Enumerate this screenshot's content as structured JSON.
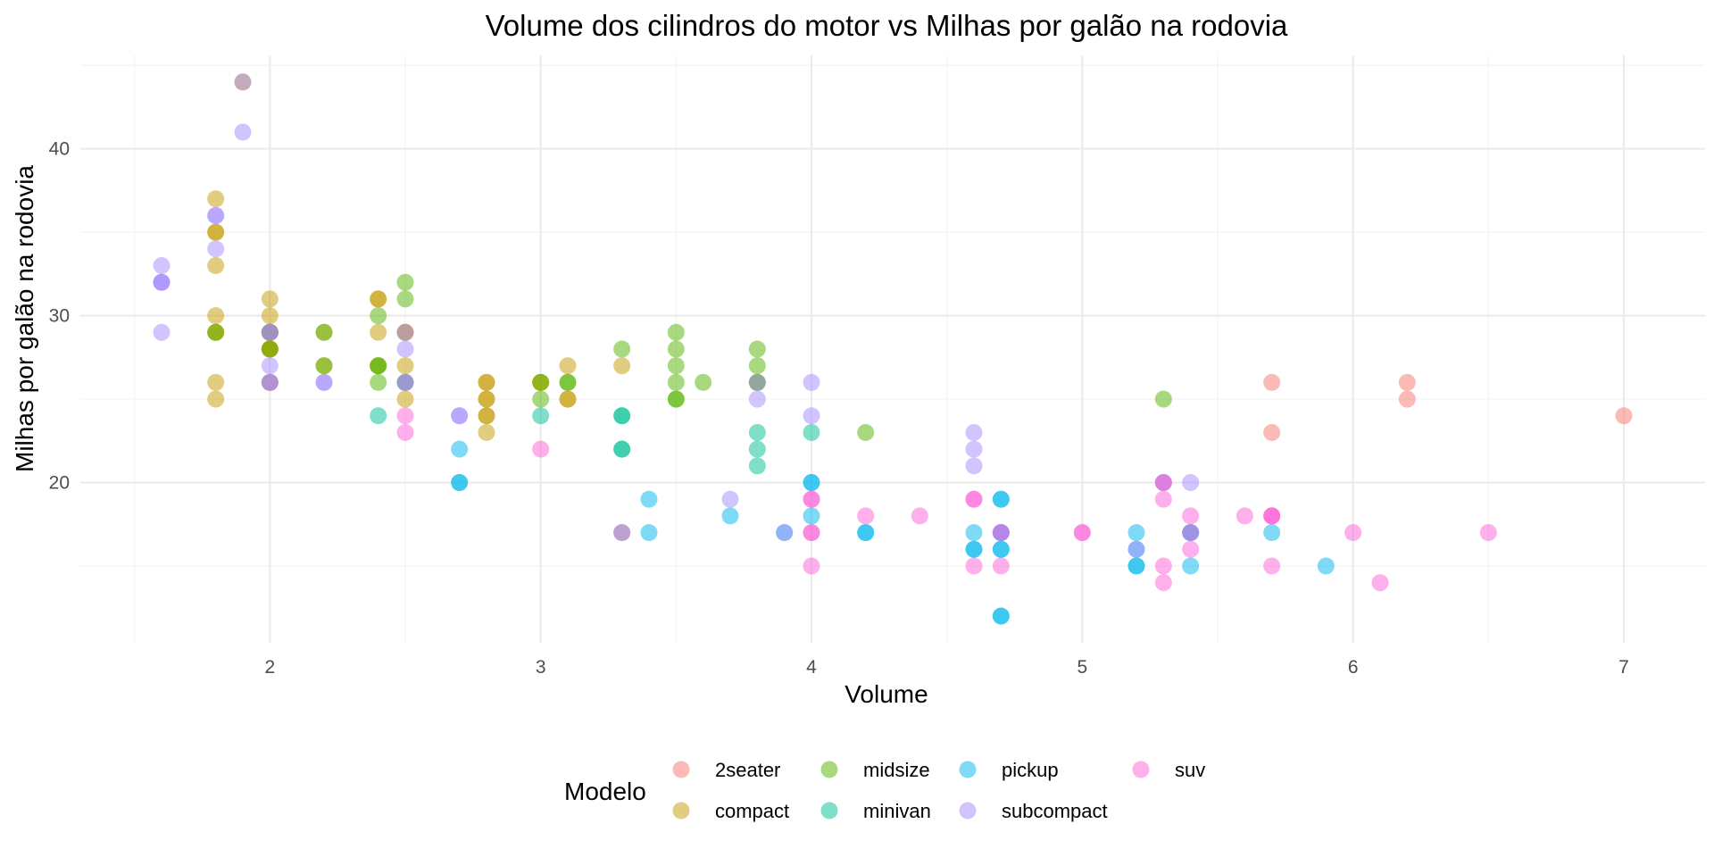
{
  "chart_data": {
    "type": "scatter",
    "title": "Volume dos cilindros do motor vs Milhas por galão na rodovia",
    "xlabel": "Volume",
    "ylabel": "Milhas por galão na rodovia",
    "xlim": [
      1.3,
      7.3
    ],
    "ylim": [
      10.4,
      45.6
    ],
    "x_major_ticks": [
      2,
      3,
      4,
      5,
      6,
      7
    ],
    "x_minor_ticks": [
      1.5,
      2.5,
      3.5,
      4.5,
      5.5,
      6.5
    ],
    "y_major_ticks": [
      20,
      30,
      40
    ],
    "y_minor_ticks": [
      15,
      25,
      35,
      45
    ],
    "x_tick_labels": [
      "2",
      "3",
      "4",
      "5",
      "6",
      "7"
    ],
    "y_tick_labels": [
      "20",
      "30",
      "40"
    ],
    "grid": true,
    "point_opacity": 0.5,
    "legend": {
      "title": "Modelo",
      "position": "bottom",
      "entries": [
        "2seater",
        "compact",
        "midsize",
        "minivan",
        "pickup",
        "subcompact",
        "suv"
      ]
    },
    "series": [
      {
        "name": "2seater",
        "color": "#F8766D",
        "points": [
          [
            5.7,
            26
          ],
          [
            5.7,
            23
          ],
          [
            6.2,
            26
          ],
          [
            6.2,
            25
          ],
          [
            7.0,
            24
          ]
        ]
      },
      {
        "name": "compact",
        "color": "#C49A00",
        "points": [
          [
            1.8,
            29
          ],
          [
            1.8,
            29
          ],
          [
            2.0,
            31
          ],
          [
            2.0,
            30
          ],
          [
            2.8,
            26
          ],
          [
            2.8,
            26
          ],
          [
            3.1,
            27
          ],
          [
            1.8,
            26
          ],
          [
            1.8,
            25
          ],
          [
            2.0,
            28
          ],
          [
            2.0,
            28
          ],
          [
            2.8,
            25
          ],
          [
            2.8,
            25
          ],
          [
            3.1,
            25
          ],
          [
            3.1,
            25
          ],
          [
            2.2,
            27
          ],
          [
            2.2,
            29
          ],
          [
            2.4,
            31
          ],
          [
            2.4,
            31
          ],
          [
            3.0,
            26
          ],
          [
            3.0,
            26
          ],
          [
            3.3,
            27
          ],
          [
            1.8,
            33
          ],
          [
            1.8,
            35
          ],
          [
            1.8,
            37
          ],
          [
            1.8,
            35
          ],
          [
            2.0,
            29
          ],
          [
            2.0,
            26
          ],
          [
            2.0,
            29
          ],
          [
            2.0,
            29
          ],
          [
            2.8,
            24
          ],
          [
            1.9,
            44
          ],
          [
            2.0,
            29
          ],
          [
            2.0,
            26
          ],
          [
            2.5,
            29
          ],
          [
            2.5,
            29
          ],
          [
            2.8,
            23
          ],
          [
            2.8,
            24
          ],
          [
            1.8,
            30
          ],
          [
            2.0,
            28
          ],
          [
            2.0,
            29
          ],
          [
            2.4,
            29
          ],
          [
            2.5,
            27
          ],
          [
            2.5,
            25
          ],
          [
            2.4,
            27
          ]
        ]
      },
      {
        "name": "midsize",
        "color": "#53B400",
        "points": [
          [
            2.4,
            27
          ],
          [
            2.4,
            30
          ],
          [
            3.1,
            26
          ],
          [
            3.5,
            29
          ],
          [
            3.6,
            26
          ],
          [
            2.4,
            27
          ],
          [
            3.0,
            25
          ],
          [
            3.3,
            28
          ],
          [
            3.5,
            28
          ],
          [
            3.5,
            27
          ],
          [
            3.8,
            28
          ],
          [
            3.8,
            26
          ],
          [
            3.8,
            26
          ],
          [
            5.3,
            25
          ],
          [
            2.5,
            32
          ],
          [
            2.5,
            31
          ],
          [
            3.5,
            26
          ],
          [
            3.5,
            25
          ],
          [
            1.8,
            29
          ],
          [
            2.0,
            28
          ],
          [
            2.0,
            29
          ],
          [
            2.5,
            26
          ],
          [
            2.5,
            26
          ],
          [
            3.5,
            25
          ],
          [
            4.2,
            23
          ],
          [
            3.8,
            27
          ],
          [
            3.1,
            26
          ],
          [
            2.4,
            26
          ],
          [
            2.2,
            29
          ],
          [
            2.2,
            27
          ],
          [
            3.0,
            26
          ]
        ]
      },
      {
        "name": "minivan",
        "color": "#00C094",
        "points": [
          [
            2.4,
            24
          ],
          [
            3.0,
            24
          ],
          [
            3.3,
            22
          ],
          [
            3.3,
            22
          ],
          [
            3.3,
            24
          ],
          [
            3.3,
            24
          ],
          [
            3.3,
            17
          ],
          [
            3.8,
            22
          ],
          [
            3.8,
            21
          ],
          [
            3.8,
            23
          ],
          [
            4.0,
            23
          ]
        ]
      },
      {
        "name": "pickup",
        "color": "#00B6EB",
        "points": [
          [
            2.7,
            20
          ],
          [
            2.7,
            20
          ],
          [
            2.7,
            22
          ],
          [
            3.4,
            17
          ],
          [
            3.4,
            19
          ],
          [
            4.0,
            18
          ],
          [
            4.0,
            20
          ],
          [
            4.7,
            17
          ],
          [
            4.7,
            16
          ],
          [
            4.7,
            16
          ],
          [
            5.2,
            16
          ],
          [
            5.2,
            17
          ],
          [
            3.7,
            18
          ],
          [
            3.9,
            17
          ],
          [
            4.7,
            19
          ],
          [
            4.7,
            17
          ],
          [
            5.2,
            15
          ],
          [
            5.2,
            15
          ],
          [
            5.7,
            17
          ],
          [
            5.9,
            15
          ],
          [
            4.6,
            17
          ],
          [
            4.6,
            16
          ],
          [
            5.4,
            15
          ],
          [
            4.2,
            17
          ],
          [
            4.2,
            17
          ],
          [
            4.6,
            16
          ],
          [
            4.7,
            12
          ],
          [
            4.7,
            12
          ],
          [
            5.4,
            17
          ],
          [
            5.3,
            20
          ],
          [
            5.4,
            17
          ],
          [
            4.0,
            20
          ],
          [
            4.7,
            19
          ]
        ]
      },
      {
        "name": "subcompact",
        "color": "#A58AFF",
        "points": [
          [
            1.6,
            33
          ],
          [
            1.6,
            32
          ],
          [
            1.6,
            32
          ],
          [
            1.6,
            29
          ],
          [
            1.6,
            32
          ],
          [
            1.8,
            34
          ],
          [
            1.8,
            36
          ],
          [
            1.8,
            36
          ],
          [
            2.0,
            29
          ],
          [
            2.0,
            26
          ],
          [
            2.0,
            27
          ],
          [
            1.9,
            44
          ],
          [
            1.9,
            41
          ],
          [
            2.0,
            29
          ],
          [
            2.0,
            26
          ],
          [
            2.5,
            28
          ],
          [
            2.5,
            29
          ],
          [
            2.5,
            26
          ],
          [
            2.5,
            26
          ],
          [
            2.2,
            26
          ],
          [
            2.2,
            26
          ],
          [
            2.7,
            24
          ],
          [
            2.7,
            24
          ],
          [
            3.8,
            26
          ],
          [
            3.8,
            25
          ],
          [
            4.0,
            26
          ],
          [
            4.0,
            24
          ],
          [
            4.6,
            21
          ],
          [
            4.6,
            22
          ],
          [
            4.6,
            23
          ],
          [
            5.4,
            20
          ],
          [
            3.7,
            19
          ],
          [
            3.9,
            17
          ],
          [
            4.7,
            17
          ],
          [
            5.2,
            16
          ]
        ]
      },
      {
        "name": "suv",
        "color": "#FB61D7",
        "points": [
          [
            5.7,
            15
          ],
          [
            5.7,
            18
          ],
          [
            6.0,
            17
          ],
          [
            5.7,
            18
          ],
          [
            5.3,
            20
          ],
          [
            5.3,
            15
          ],
          [
            5.3,
            14
          ],
          [
            5.7,
            18
          ],
          [
            6.5,
            17
          ],
          [
            6.1,
            14
          ],
          [
            5.4,
            16
          ],
          [
            5.4,
            18
          ],
          [
            5.4,
            17
          ],
          [
            4.0,
            15
          ],
          [
            4.0,
            17
          ],
          [
            4.0,
            19
          ],
          [
            4.0,
            17
          ],
          [
            4.0,
            19
          ],
          [
            4.6,
            15
          ],
          [
            4.6,
            19
          ],
          [
            4.6,
            19
          ],
          [
            4.7,
            15
          ],
          [
            5.0,
            17
          ],
          [
            5.0,
            17
          ],
          [
            5.3,
            19
          ],
          [
            5.6,
            18
          ],
          [
            4.2,
            18
          ],
          [
            4.4,
            18
          ],
          [
            2.5,
            24
          ],
          [
            2.5,
            23
          ],
          [
            3.0,
            22
          ],
          [
            4.7,
            17
          ],
          [
            3.3,
            17
          ],
          [
            5.3,
            20
          ]
        ]
      }
    ]
  }
}
